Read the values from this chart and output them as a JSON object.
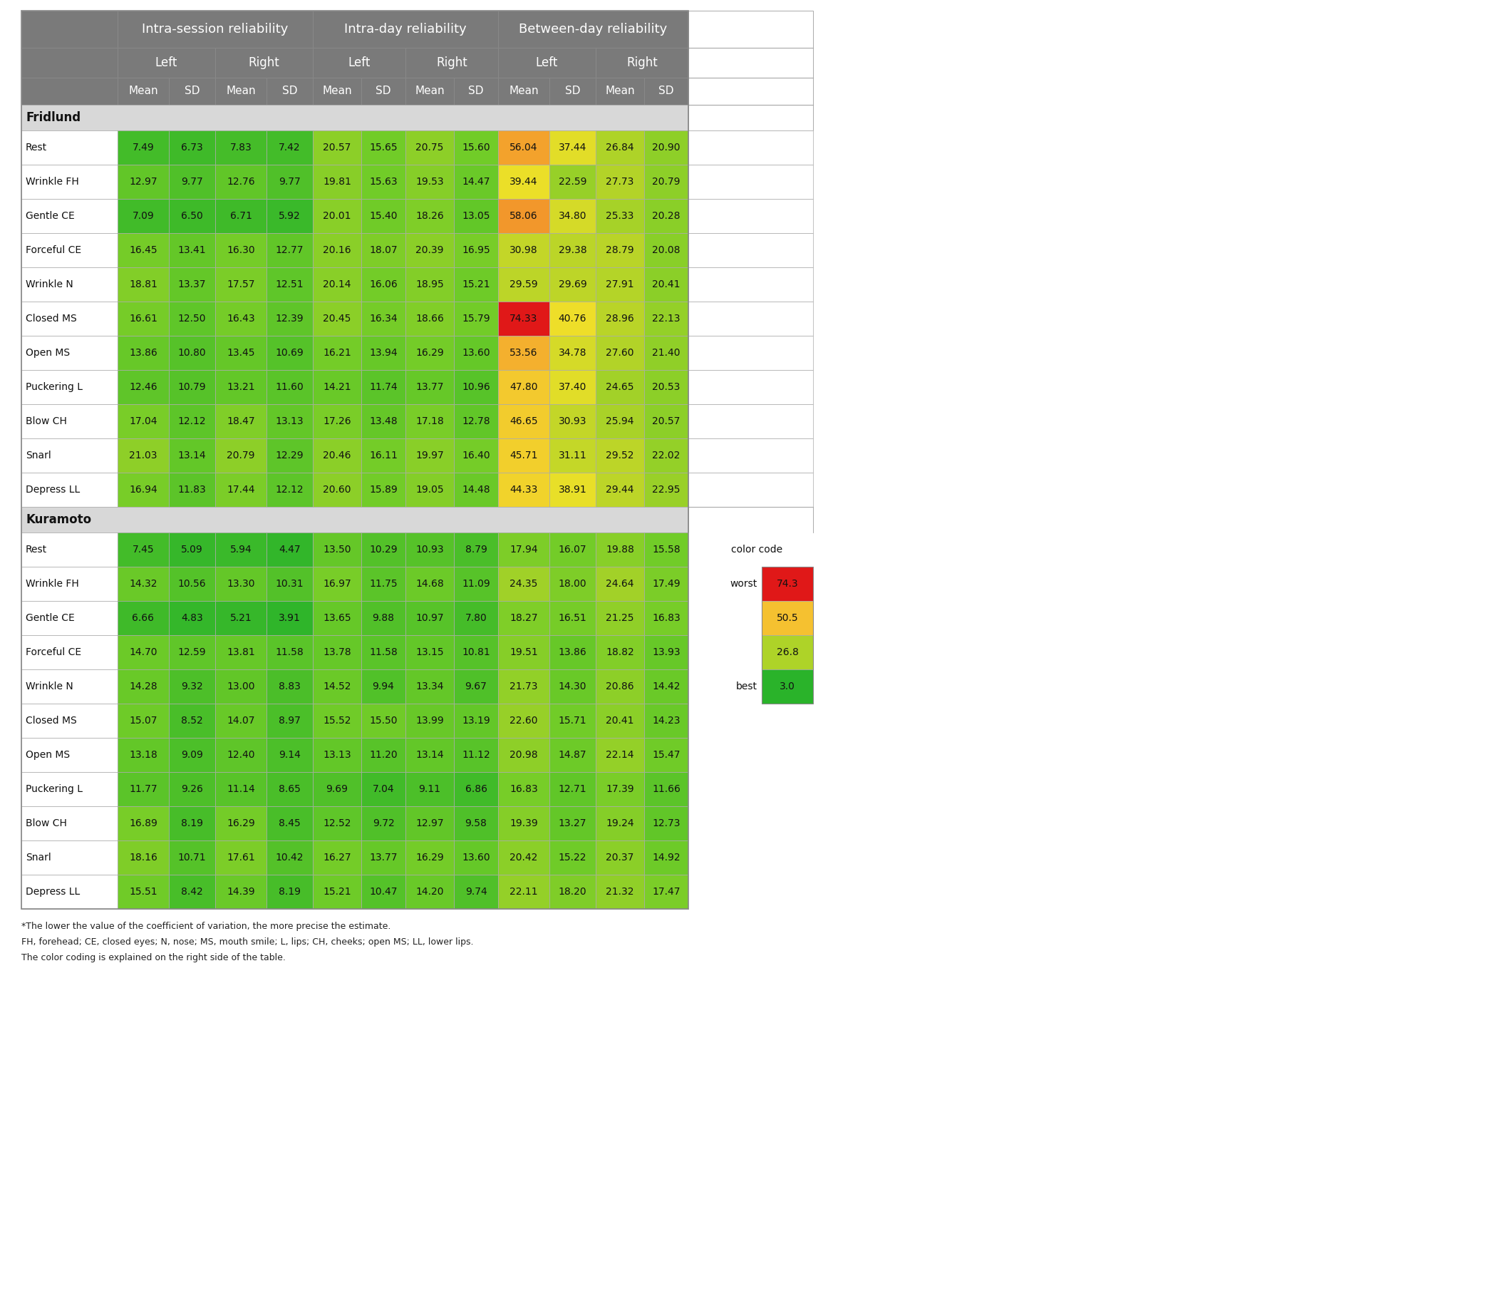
{
  "rows_fridlund": [
    [
      "Rest",
      7.49,
      6.73,
      7.83,
      7.42,
      20.57,
      15.65,
      20.75,
      15.6,
      56.04,
      37.44,
      26.84,
      20.9
    ],
    [
      "Wrinkle FH",
      12.97,
      9.77,
      12.76,
      9.77,
      19.81,
      15.63,
      19.53,
      14.47,
      39.44,
      22.59,
      27.73,
      20.79
    ],
    [
      "Gentle CE",
      7.09,
      6.5,
      6.71,
      5.92,
      20.01,
      15.4,
      18.26,
      13.05,
      58.06,
      34.8,
      25.33,
      20.28
    ],
    [
      "Forceful CE",
      16.45,
      13.41,
      16.3,
      12.77,
      20.16,
      18.07,
      20.39,
      16.95,
      30.98,
      29.38,
      28.79,
      20.08
    ],
    [
      "Wrinkle N",
      18.81,
      13.37,
      17.57,
      12.51,
      20.14,
      16.06,
      18.95,
      15.21,
      29.59,
      29.69,
      27.91,
      20.41
    ],
    [
      "Closed MS",
      16.61,
      12.5,
      16.43,
      12.39,
      20.45,
      16.34,
      18.66,
      15.79,
      74.33,
      40.76,
      28.96,
      22.13
    ],
    [
      "Open MS",
      13.86,
      10.8,
      13.45,
      10.69,
      16.21,
      13.94,
      16.29,
      13.6,
      53.56,
      34.78,
      27.6,
      21.4
    ],
    [
      "Puckering L",
      12.46,
      10.79,
      13.21,
      11.6,
      14.21,
      11.74,
      13.77,
      10.96,
      47.8,
      37.4,
      24.65,
      20.53
    ],
    [
      "Blow CH",
      17.04,
      12.12,
      18.47,
      13.13,
      17.26,
      13.48,
      17.18,
      12.78,
      46.65,
      30.93,
      25.94,
      20.57
    ],
    [
      "Snarl",
      21.03,
      13.14,
      20.79,
      12.29,
      20.46,
      16.11,
      19.97,
      16.4,
      45.71,
      31.11,
      29.52,
      22.02
    ],
    [
      "Depress LL",
      16.94,
      11.83,
      17.44,
      12.12,
      20.6,
      15.89,
      19.05,
      14.48,
      44.33,
      38.91,
      29.44,
      22.95
    ]
  ],
  "rows_kuramoto": [
    [
      "Rest",
      7.45,
      5.09,
      5.94,
      4.47,
      13.5,
      10.29,
      10.93,
      8.79,
      17.94,
      16.07,
      19.88,
      15.58
    ],
    [
      "Wrinkle FH",
      14.32,
      10.56,
      13.3,
      10.31,
      16.97,
      11.75,
      14.68,
      11.09,
      24.35,
      18.0,
      24.64,
      17.49
    ],
    [
      "Gentle CE",
      6.66,
      4.83,
      5.21,
      3.91,
      13.65,
      9.88,
      10.97,
      7.8,
      18.27,
      16.51,
      21.25,
      16.83
    ],
    [
      "Forceful CE",
      14.7,
      12.59,
      13.81,
      11.58,
      13.78,
      11.58,
      13.15,
      10.81,
      19.51,
      13.86,
      18.82,
      13.93
    ],
    [
      "Wrinkle N",
      14.28,
      9.32,
      13.0,
      8.83,
      14.52,
      9.94,
      13.34,
      9.67,
      21.73,
      14.3,
      20.86,
      14.42
    ],
    [
      "Closed MS",
      15.07,
      8.52,
      14.07,
      8.97,
      15.52,
      15.5,
      13.99,
      13.19,
      22.6,
      15.71,
      20.41,
      14.23
    ],
    [
      "Open MS",
      13.18,
      9.09,
      12.4,
      9.14,
      13.13,
      11.2,
      13.14,
      11.12,
      20.98,
      14.87,
      22.14,
      15.47
    ],
    [
      "Puckering L",
      11.77,
      9.26,
      11.14,
      8.65,
      9.69,
      7.04,
      9.11,
      6.86,
      16.83,
      12.71,
      17.39,
      11.66
    ],
    [
      "Blow CH",
      16.89,
      8.19,
      16.29,
      8.45,
      12.52,
      9.72,
      12.97,
      9.58,
      19.39,
      13.27,
      19.24,
      12.73
    ],
    [
      "Snarl",
      18.16,
      10.71,
      17.61,
      10.42,
      16.27,
      13.77,
      16.29,
      13.6,
      20.42,
      15.22,
      20.37,
      14.92
    ],
    [
      "Depress LL",
      15.51,
      8.42,
      14.39,
      8.19,
      15.21,
      10.47,
      14.2,
      9.74,
      22.11,
      18.2,
      21.32,
      17.47
    ]
  ],
  "color_min": 3.0,
  "color_max": 74.3,
  "legend_entries": [
    [
      "worst",
      74.3
    ],
    [
      "",
      50.5
    ],
    [
      "",
      26.8
    ],
    [
      "best",
      3.0
    ]
  ],
  "header_bg": "#7a7a7a",
  "section_bg": "#d8d8d8",
  "white": "#ffffff",
  "cell_border": "#b0b0b0",
  "header_text": "#ffffff",
  "dark_text": "#111111",
  "footnote1": "*The lower the value of the coefficient of variation, the more precise the estimate.",
  "footnote2": "FH, forehead; CE, closed eyes; N, nose; MS, mouth smile; L, lips; CH, cheeks; open MS; LL, lower lips.",
  "footnote3": "The color coding is explained on the right side of the table."
}
